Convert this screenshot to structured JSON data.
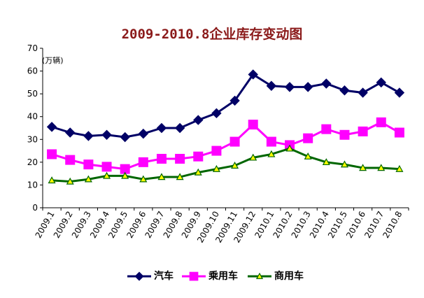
{
  "chart_data": {
    "type": "line",
    "title": "2009-2010.8企业库存变动图",
    "unit_label": "(万辆)",
    "ylim": [
      0,
      70
    ],
    "yticks": [
      0,
      10,
      20,
      30,
      40,
      50,
      60,
      70
    ],
    "grid": false,
    "legend_position": "bottom",
    "categories": [
      "2009.1",
      "2009.2",
      "2009.3",
      "2009.4",
      "2009.5",
      "2009.6",
      "2009.7",
      "2009.8",
      "2009.9",
      "2009.10",
      "2009.11",
      "2009.12",
      "2010.1",
      "2010.2",
      "2010.3",
      "2010.4",
      "2010.5",
      "2010.6",
      "2010.7",
      "2010.8"
    ],
    "series": [
      {
        "name": "汽车",
        "color": "#000066",
        "marker": "diamond",
        "values": [
          35.5,
          33,
          31.5,
          32,
          31,
          32.5,
          35,
          35,
          38.5,
          41.5,
          47,
          58.5,
          53.5,
          53,
          53,
          54.5,
          51.5,
          50.5,
          55,
          50.5
        ]
      },
      {
        "name": "乘用车",
        "color": "#ff00ff",
        "marker": "square",
        "values": [
          23.5,
          21,
          19,
          18,
          17,
          20,
          21.5,
          21.5,
          22.5,
          25,
          29,
          36.5,
          29,
          27.5,
          30.5,
          34.5,
          32,
          33.5,
          37.5,
          33
        ]
      },
      {
        "name": "商用车",
        "color": "#006600",
        "marker": "triangle",
        "marker_fill": "#ffff00",
        "values": [
          12,
          11.5,
          12.5,
          14,
          14,
          12.5,
          13.5,
          13.5,
          15.5,
          17,
          18.5,
          22,
          23.5,
          26,
          22.5,
          20,
          19,
          17.5,
          17.5,
          17
        ]
      }
    ]
  }
}
